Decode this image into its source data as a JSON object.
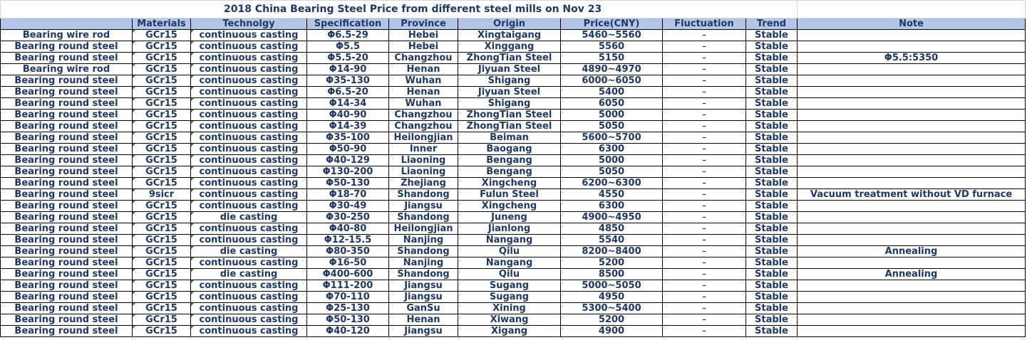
{
  "title": "2018 China Bearing Steel Price from different steel mills on Nov 23",
  "columns": [
    "",
    "Materials",
    "Technolgy",
    "Specification",
    "Province",
    "Origin",
    "Price(CNY)",
    "Fluctuation",
    "Trend",
    "Note"
  ],
  "rows": [
    [
      "Bearing wire rod",
      "GCr15",
      "continuous casting",
      "Φ6.5-29",
      "Hebei",
      "Xingtaigang",
      "5460~5560",
      "-",
      "Stable",
      ""
    ],
    [
      "Bearing round steel",
      "GCr15",
      "continuous casting",
      "Φ5.5",
      "Hebei",
      "Xinggang",
      "5560",
      "-",
      "Stable",
      ""
    ],
    [
      "Bearing round steel",
      "GCr15",
      "continuous casting",
      "Φ5.5-20",
      "Changzhou",
      "ZhongTian Steel",
      "5150",
      "-",
      "Stable",
      "Φ5.5:5350"
    ],
    [
      "Bearing wire rod",
      "GCr15",
      "continuous casting",
      "Φ14-90",
      "Henan",
      "Jiyuan Steel",
      "4890~4970",
      "-",
      "Stable",
      ""
    ],
    [
      "Bearing round steel",
      "GCr15",
      "continuous casting",
      "Φ35-130",
      "Wuhan",
      "Shigang",
      "6000~6050",
      "-",
      "Stable",
      ""
    ],
    [
      "Bearing round steel",
      "GCr15",
      "continuous casting",
      "Φ6.5-20",
      "Henan",
      "Jiyuan Steel",
      "5400",
      "-",
      "Stable",
      ""
    ],
    [
      "Bearing round steel",
      "GCr15",
      "continuous casting",
      "Φ14-34",
      "Wuhan",
      "Shigang",
      "6050",
      "-",
      "Stable",
      ""
    ],
    [
      "Bearing round steel",
      "GCr15",
      "continuous casting",
      "Φ40-90",
      "Changzhou",
      "ZhongTian Steel",
      "5000",
      "-",
      "Stable",
      ""
    ],
    [
      "Bearing round steel",
      "GCr15",
      "continuous casting",
      "Φ14-39",
      "Changzhou",
      "ZhongTian Steel",
      "5050",
      "-",
      "Stable",
      ""
    ],
    [
      "Bearing round steel",
      "GCr15",
      "continuous casting",
      "Φ35-100",
      "Heilongjian",
      "Beiman",
      "5600~5700",
      "-",
      "Stable",
      ""
    ],
    [
      "Bearing round steel",
      "GCr15",
      "continuous casting",
      "Φ50-90",
      "Inner",
      "Baogang",
      "6300",
      "-",
      "Stable",
      ""
    ],
    [
      "Bearing round steel",
      "GCr15",
      "continuous casting",
      "Φ40-129",
      "Liaoning",
      "Bengang",
      "5000",
      "-",
      "Stable",
      ""
    ],
    [
      "Bearing round steel",
      "GCr15",
      "continuous casting",
      "Φ130-200",
      "Liaoning",
      "Bengang",
      "5050",
      "-",
      "Stable",
      ""
    ],
    [
      "Bearing round steel",
      "GCr15",
      "continuous casting",
      "Φ50-130",
      "Zhejiang",
      "Xingcheng",
      "6200~6300",
      "-",
      "Stable",
      ""
    ],
    [
      "Bearing round steel",
      "9sicr",
      "continuous casting",
      "Φ18-70",
      "Shandong",
      "Fulun Steel",
      "4550",
      "-",
      "Stable",
      "Vacuum treatment without VD furnace"
    ],
    [
      "Bearing round steel",
      "GCr15",
      "continuous casting",
      "Φ30-49",
      "Jiangsu",
      "Xingcheng",
      "6300",
      "-",
      "Stable",
      ""
    ],
    [
      "Bearing round steel",
      "GCr15",
      "die casting",
      "Φ30-250",
      "Shandong",
      "Juneng",
      "4900~4950",
      "-",
      "Stable",
      ""
    ],
    [
      "Bearing round steel",
      "GCr15",
      "continuous casting",
      "Φ40-80",
      "Heilongjian",
      "Jianlong",
      "4850",
      "-",
      "Stable",
      ""
    ],
    [
      "Bearing round steel",
      "GCr15",
      "continuous casting",
      "Φ12-15.5",
      "Nanjing",
      "Nangang",
      "5540",
      "-",
      "Stable",
      ""
    ],
    [
      "Bearing round steel",
      "GCr15",
      "die casting",
      "Φ80-350",
      "Shandong",
      "Qilu",
      "8200~8400",
      "-",
      "Stable",
      "Annealing"
    ],
    [
      "Bearing round steel",
      "GCr15",
      "continuous casting",
      "Φ16-50",
      "Nanjing",
      "Nangang",
      "5200",
      "-",
      "Stable",
      ""
    ],
    [
      "Bearing round steel",
      "GCr15",
      "die casting",
      "Φ400-600",
      "Shandong",
      "Qilu",
      "8500",
      "-",
      "Stable",
      "Annealing"
    ],
    [
      "Bearing round steel",
      "GCr15",
      "continuous casting",
      "Φ111-200",
      "Jiangsu",
      "Sugang",
      "5000~5050",
      "-",
      "Stable",
      ""
    ],
    [
      "Bearing round steel",
      "GCr15",
      "continuous casting",
      "Φ70-110",
      "Jiangsu",
      "Sugang",
      "4950",
      "-",
      "Stable",
      ""
    ],
    [
      "Bearing round steel",
      "GCr15",
      "continuous casting",
      "Φ25-130",
      "GanSu",
      "Xining",
      "5300~5400",
      "-",
      "Stable",
      ""
    ],
    [
      "Bearing round steel",
      "GCr15",
      "continuous casting",
      "Φ50-130",
      "Henan",
      "Xiwang",
      "5200",
      "-",
      "Stable",
      ""
    ],
    [
      "Bearing round steel",
      "GCr15",
      "continuous casting",
      "Φ40-120",
      "Jiangsu",
      "Xigang",
      "4900",
      "-",
      "Stable",
      ""
    ]
  ],
  "colors": {
    "header_bg": "#b4c6e7",
    "text": "#1f3864",
    "marker": "#2e7d32"
  }
}
